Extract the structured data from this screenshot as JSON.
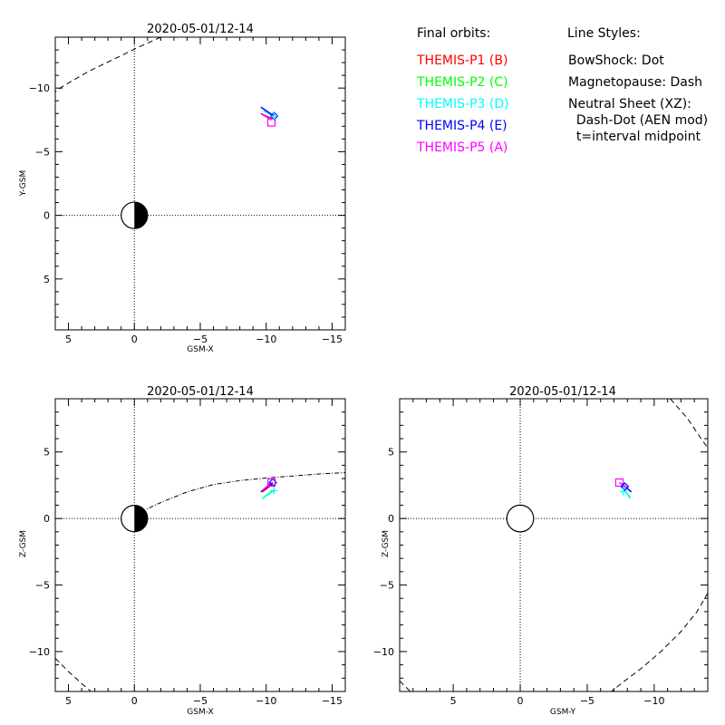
{
  "legend": {
    "orbits_heading": "Final orbits:",
    "probes": [
      {
        "label": "THEMIS-P1 (B)",
        "color": "#ff0000"
      },
      {
        "label": "THEMIS-P2 (C)",
        "color": "#00ff00"
      },
      {
        "label": "THEMIS-P3 (D)",
        "color": "#00ffff"
      },
      {
        "label": "THEMIS-P4 (E)",
        "color": "#0000ff"
      },
      {
        "label": "THEMIS-P5 (A)",
        "color": "#ff00ff"
      }
    ],
    "styles_heading": "Line Styles:",
    "styles": [
      "BowShock: Dot",
      "Magnetopause: Dash",
      "Neutral Sheet (XZ):",
      "  Dash-Dot (AEN mod)",
      "  t=interval midpoint"
    ]
  },
  "chart_data": [
    {
      "type": "line",
      "title": "2020-05-01/12-14",
      "xlabel": "GSM-X",
      "ylabel": "Y-GSM",
      "xlim": [
        6,
        -16
      ],
      "ylim": [
        9,
        -14
      ],
      "xticks": [
        5,
        0,
        -5,
        -10,
        -15
      ],
      "yticks": [
        5,
        0,
        -5,
        -10
      ],
      "earth": {
        "center": [
          0,
          0
        ],
        "radius": 1,
        "shaded_half": "negative-x"
      },
      "boundary_dashed": [
        [
          -2.0,
          -14.0
        ],
        [
          -0.5,
          -13.3
        ],
        [
          1.5,
          -12.3
        ],
        [
          3.5,
          -11.3
        ],
        [
          5.5,
          -10.1
        ],
        [
          6.0,
          -9.7
        ]
      ],
      "series": [
        {
          "name": "THEMIS-P1 (B)",
          "color": "#ff0000",
          "points": [
            [
              -9.6,
              -8.0
            ],
            [
              -10.4,
              -7.6
            ]
          ]
        },
        {
          "name": "THEMIS-P2 (C)",
          "color": "#00ff00",
          "points": []
        },
        {
          "name": "THEMIS-P3 (D)",
          "color": "#00ffff",
          "points": [
            [
              -9.8,
              -8.2
            ],
            [
              -10.6,
              -7.8
            ]
          ]
        },
        {
          "name": "THEMIS-P4 (E)",
          "color": "#0000ff",
          "points": [
            [
              -9.6,
              -8.5
            ],
            [
              -10.6,
              -7.8
            ]
          ]
        },
        {
          "name": "THEMIS-P5 (A)",
          "color": "#ff00ff",
          "points": [
            [
              -9.6,
              -8.0
            ],
            [
              -10.4,
              -7.5
            ]
          ]
        }
      ],
      "markers": [
        {
          "series": "THEMIS-P4 (E)",
          "shape": "diamond",
          "x": -10.6,
          "y": -7.8
        },
        {
          "series": "THEMIS-P5 (A)",
          "shape": "square",
          "x": -10.4,
          "y": -7.3
        },
        {
          "series": "THEMIS-P3 (D)",
          "shape": "plus",
          "x": -10.6,
          "y": -7.8
        }
      ]
    },
    {
      "type": "line",
      "title": "2020-05-01/12-14",
      "xlabel": "GSM-X",
      "ylabel": "Z-GSM",
      "xlim": [
        6,
        -16
      ],
      "ylim": [
        -13,
        9
      ],
      "xticks": [
        5,
        0,
        -5,
        -10,
        -15
      ],
      "yticks": [
        5,
        0,
        -5,
        -10
      ],
      "earth": {
        "center": [
          0,
          0
        ],
        "radius": 1,
        "shaded_half": "negative-x"
      },
      "boundary_dashed": [
        [
          6.0,
          -10.5
        ],
        [
          5.0,
          -11.5
        ],
        [
          4.0,
          -12.4
        ],
        [
          3.3,
          -13.0
        ]
      ],
      "neutral_sheet": [
        [
          -0.5,
          0.5
        ],
        [
          -2.0,
          1.2
        ],
        [
          -4.0,
          2.0
        ],
        [
          -6.0,
          2.55
        ],
        [
          -8.0,
          2.85
        ],
        [
          -10.0,
          3.05
        ],
        [
          -12.0,
          3.2
        ],
        [
          -14.0,
          3.35
        ],
        [
          -16.0,
          3.45
        ]
      ],
      "series": [
        {
          "name": "THEMIS-P1 (B)",
          "color": "#ff0000",
          "points": [
            [
              -9.7,
              2.0
            ],
            [
              -10.5,
              2.6
            ]
          ]
        },
        {
          "name": "THEMIS-P2 (C)",
          "color": "#00ff00",
          "points": [
            [
              -9.7,
              1.5
            ],
            [
              -10.5,
              2.1
            ]
          ]
        },
        {
          "name": "THEMIS-P3 (D)",
          "color": "#00ffff",
          "points": [
            [
              -9.7,
              1.5
            ],
            [
              -10.6,
              2.1
            ]
          ]
        },
        {
          "name": "THEMIS-P4 (E)",
          "color": "#0000ff",
          "points": [
            [
              -9.6,
              2.0
            ],
            [
              -10.5,
              2.7
            ]
          ]
        },
        {
          "name": "THEMIS-P5 (A)",
          "color": "#ff00ff",
          "points": [
            [
              -9.7,
              2.1
            ],
            [
              -10.4,
              2.7
            ]
          ]
        }
      ],
      "markers": [
        {
          "series": "THEMIS-P4 (E)",
          "shape": "diamond",
          "x": -10.5,
          "y": 2.7
        },
        {
          "series": "THEMIS-P5 (A)",
          "shape": "square",
          "x": -10.4,
          "y": 2.7
        },
        {
          "series": "THEMIS-P3 (D)",
          "shape": "plus",
          "x": -10.6,
          "y": 2.1
        }
      ]
    },
    {
      "type": "line",
      "title": "2020-05-01/12-14",
      "xlabel": "GSM-Y",
      "ylabel": "Z-GSM",
      "xlim": [
        9,
        -14
      ],
      "ylim": [
        -13,
        9
      ],
      "xticks": [
        5,
        0,
        -5,
        -10
      ],
      "yticks": [
        5,
        0,
        -5,
        -10
      ],
      "earth": {
        "center": [
          0,
          0
        ],
        "radius": 1,
        "shaded_half": "none"
      },
      "boundary_dashed_segments": [
        [
          [
            -11.2,
            9.0
          ],
          [
            -12.5,
            7.5
          ],
          [
            -13.5,
            6.0
          ],
          [
            -14.0,
            5.3
          ]
        ],
        [
          [
            -14.0,
            -5.6
          ],
          [
            -13.2,
            -7.0
          ],
          [
            -12.0,
            -8.5
          ],
          [
            -10.5,
            -10.0
          ],
          [
            -9.0,
            -11.3
          ],
          [
            -7.8,
            -12.2
          ],
          [
            -6.8,
            -13.0
          ]
        ],
        [
          [
            9.0,
            -12.2
          ],
          [
            8.2,
            -13.0
          ]
        ]
      ],
      "series": [
        {
          "name": "THEMIS-P1 (B)",
          "color": "#ff0000",
          "points": []
        },
        {
          "name": "THEMIS-P2 (C)",
          "color": "#00ff00",
          "points": [
            [
              -7.8,
              2.1
            ],
            [
              -8.2,
              1.6
            ]
          ]
        },
        {
          "name": "THEMIS-P3 (D)",
          "color": "#00ffff",
          "points": [
            [
              -7.6,
              2.5
            ],
            [
              -8.2,
              1.5
            ]
          ]
        },
        {
          "name": "THEMIS-P4 (E)",
          "color": "#0000ff",
          "points": [
            [
              -7.6,
              2.6
            ],
            [
              -8.3,
              2.0
            ]
          ]
        },
        {
          "name": "THEMIS-P5 (A)",
          "color": "#ff00ff",
          "points": [
            [
              -7.4,
              2.7
            ],
            [
              -8.0,
              2.3
            ]
          ]
        }
      ],
      "markers": [
        {
          "series": "THEMIS-P5 (A)",
          "shape": "square",
          "x": -7.4,
          "y": 2.7
        },
        {
          "series": "THEMIS-P4 (E)",
          "shape": "diamond",
          "x": -7.8,
          "y": 2.4
        },
        {
          "series": "THEMIS-P3 (D)",
          "shape": "plus",
          "x": -7.7,
          "y": 2.0
        }
      ]
    }
  ]
}
